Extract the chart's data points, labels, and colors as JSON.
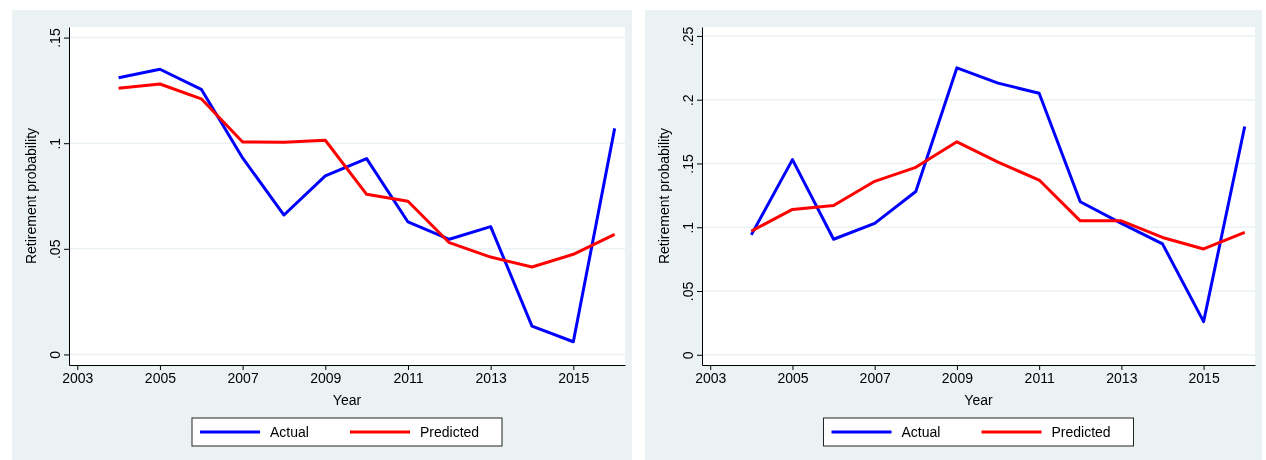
{
  "chart_data": [
    {
      "type": "line",
      "xlabel": "Year",
      "ylabel": "Retirement probability",
      "x": [
        2004,
        2005,
        2006,
        2007,
        2008,
        2009,
        2010,
        2011,
        2012,
        2013,
        2014,
        2015,
        2016
      ],
      "xlim": [
        2002.8,
        2016.25
      ],
      "xticks": [
        2003,
        2005,
        2007,
        2009,
        2011,
        2013,
        2015
      ],
      "ylim": [
        -0.005,
        0.155
      ],
      "yticks": [
        {
          "value": 0,
          "label": "0"
        },
        {
          "value": 0.05,
          "label": ".05"
        },
        {
          "value": 0.1,
          "label": ".1"
        },
        {
          "value": 0.15,
          "label": ".15"
        }
      ],
      "grid": "y",
      "legend": "bottom",
      "series": [
        {
          "name": "Actual",
          "color": "#0000ff",
          "values": [
            0.131,
            0.135,
            0.1255,
            0.093,
            0.066,
            0.0845,
            0.0927,
            0.0627,
            0.0545,
            0.0605,
            0.0134,
            0.006,
            0.107
          ]
        },
        {
          "name": "Predicted",
          "color": "#ff0000",
          "values": [
            0.126,
            0.128,
            0.121,
            0.1006,
            0.1004,
            0.1014,
            0.0758,
            0.0725,
            0.0529,
            0.0461,
            0.0414,
            0.0474,
            0.0568
          ]
        }
      ]
    },
    {
      "type": "line",
      "xlabel": "Year",
      "ylabel": "Retirement probability",
      "x": [
        2004,
        2005,
        2006,
        2007,
        2008,
        2009,
        2010,
        2011,
        2012,
        2013,
        2014,
        2015,
        2016
      ],
      "xlim": [
        2002.8,
        2016.25
      ],
      "xticks": [
        2003,
        2005,
        2007,
        2009,
        2011,
        2013,
        2015
      ],
      "ylim": [
        -0.008,
        0.257
      ],
      "yticks": [
        {
          "value": 0,
          "label": "0"
        },
        {
          "value": 0.05,
          "label": ".05"
        },
        {
          "value": 0.1,
          "label": ".1"
        },
        {
          "value": 0.15,
          "label": ".15"
        },
        {
          "value": 0.2,
          "label": ".2"
        },
        {
          "value": 0.25,
          "label": ".25"
        }
      ],
      "grid": "y",
      "legend": "bottom",
      "series": [
        {
          "name": "Actual",
          "color": "#0000ff",
          "values": [
            0.094,
            0.153,
            0.0906,
            0.103,
            0.128,
            0.225,
            0.213,
            0.205,
            0.12,
            0.103,
            0.087,
            0.026,
            0.179
          ]
        },
        {
          "name": "Predicted",
          "color": "#ff0000",
          "values": [
            0.097,
            0.114,
            0.117,
            0.136,
            0.147,
            0.167,
            0.151,
            0.137,
            0.105,
            0.105,
            0.092,
            0.083,
            0.096
          ]
        }
      ]
    }
  ]
}
